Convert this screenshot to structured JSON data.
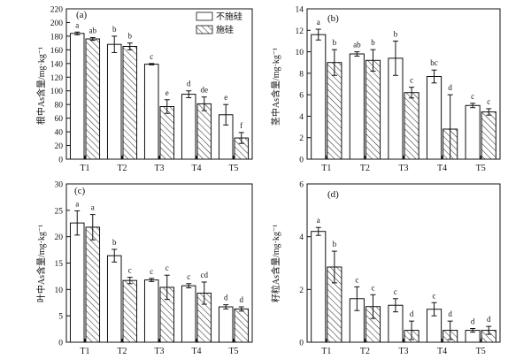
{
  "legend": {
    "items": [
      {
        "label": "不施硅",
        "pattern": "none"
      },
      {
        "label": "施硅",
        "pattern": "hatch"
      }
    ]
  },
  "chart_data": [
    {
      "type": "bar",
      "panel": "(a)",
      "ylabel": "根中As含量/mg·kg⁻¹",
      "ylim": [
        0,
        220
      ],
      "yticks": [
        0,
        20,
        40,
        60,
        80,
        100,
        120,
        140,
        160,
        180,
        200,
        220
      ],
      "categories": [
        "T1",
        "T2",
        "T3",
        "T4",
        "T5"
      ],
      "series": [
        {
          "name": "不施硅",
          "values": [
            184,
            168,
            139,
            95,
            65
          ],
          "errors": [
            2,
            12,
            1,
            5,
            15
          ],
          "letters": [
            "a",
            "b",
            "c",
            "d",
            "e"
          ]
        },
        {
          "name": "施硅",
          "values": [
            176,
            165,
            77,
            81,
            31
          ],
          "errors": [
            2,
            5,
            10,
            10,
            8
          ],
          "letters": [
            "ab",
            "b",
            "e",
            "de",
            "f"
          ]
        }
      ]
    },
    {
      "type": "bar",
      "panel": "(b)",
      "ylabel": "茎中As含量/mg·kg⁻¹",
      "ylim": [
        0,
        14
      ],
      "yticks": [
        0,
        2,
        4,
        6,
        8,
        10,
        12,
        14
      ],
      "categories": [
        "T1",
        "T2",
        "T3",
        "T4",
        "T5"
      ],
      "series": [
        {
          "name": "不施硅",
          "values": [
            11.6,
            9.8,
            9.4,
            7.7,
            5.0
          ],
          "errors": [
            0.5,
            0.2,
            1.6,
            0.6,
            0.2
          ],
          "letters": [
            "a",
            "ab",
            "b",
            "bc",
            "c"
          ]
        },
        {
          "name": "施硅",
          "values": [
            9.0,
            9.2,
            6.2,
            2.8,
            4.4
          ],
          "errors": [
            1.2,
            1.0,
            0.5,
            3.2,
            0.3
          ],
          "letters": [
            "b",
            "b",
            "c",
            "d",
            "c"
          ]
        }
      ]
    },
    {
      "type": "bar",
      "panel": "(c)",
      "ylabel": "叶中As含量/mg·kg⁻¹",
      "ylim": [
        0,
        30
      ],
      "yticks": [
        0,
        5,
        10,
        15,
        20,
        25,
        30
      ],
      "categories": [
        "T1",
        "T2",
        "T3",
        "T4",
        "T5"
      ],
      "series": [
        {
          "name": "不施硅",
          "values": [
            22.6,
            16.4,
            11.8,
            10.7,
            6.7
          ],
          "errors": [
            2.3,
            1.2,
            0.3,
            0.4,
            0.4
          ],
          "letters": [
            "a",
            "b",
            "c",
            "c",
            "d"
          ]
        },
        {
          "name": "施硅",
          "values": [
            21.8,
            11.7,
            10.4,
            9.3,
            6.3
          ],
          "errors": [
            2.4,
            0.6,
            2.3,
            2.1,
            0.4
          ],
          "letters": [
            "a",
            "c",
            "c",
            "cd",
            "d"
          ]
        }
      ]
    },
    {
      "type": "bar",
      "panel": "(d)",
      "ylabel": "籽粒As含量/mg·kg⁻¹",
      "ylim": [
        0,
        6
      ],
      "yticks": [
        0,
        2,
        4,
        6
      ],
      "categories": [
        "T1",
        "T2",
        "T3",
        "T4",
        "T5"
      ],
      "series": [
        {
          "name": "不施硅",
          "values": [
            4.2,
            1.65,
            1.4,
            1.25,
            0.45
          ],
          "errors": [
            0.15,
            0.45,
            0.25,
            0.25,
            0.07
          ],
          "letters": [
            "a",
            "c",
            "c",
            "c",
            "d"
          ]
        },
        {
          "name": "施硅",
          "values": [
            2.85,
            1.35,
            0.45,
            0.45,
            0.45
          ],
          "errors": [
            0.6,
            0.45,
            0.35,
            0.35,
            0.15
          ],
          "letters": [
            "b",
            "c",
            "d",
            "d",
            "d"
          ]
        }
      ]
    }
  ]
}
